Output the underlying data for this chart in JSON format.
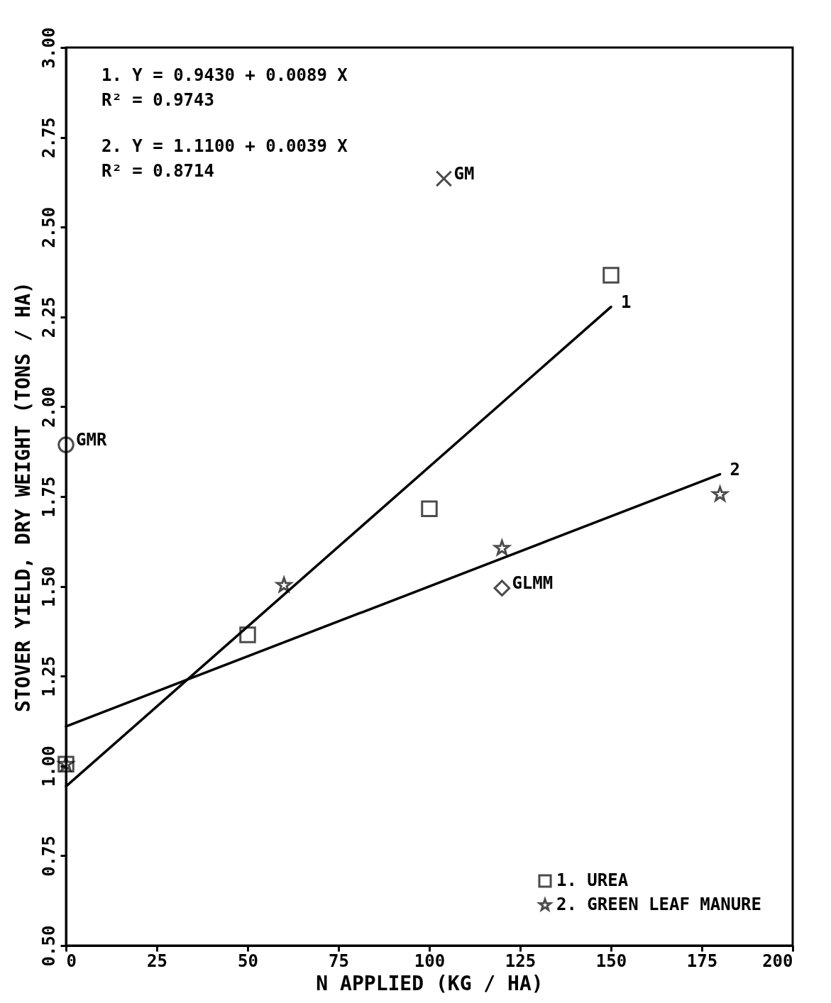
{
  "chart_data": {
    "type": "scatter",
    "xlabel": "N APPLIED (KG / HA)",
    "ylabel": "STOVER YIELD, DRY WEIGHT (TONS / HA)",
    "xlim": [
      0,
      200
    ],
    "xticks": [
      0,
      25,
      50,
      75,
      100,
      125,
      150,
      175,
      200
    ],
    "ylim": [
      0.5,
      3.0
    ],
    "yticks": [
      {
        "value": 0.5,
        "label": "0.50"
      },
      0.75,
      {
        "value": 1.0,
        "label": "1.00"
      },
      1.25,
      {
        "value": 1.5,
        "label": "1.50"
      },
      1.75,
      {
        "value": 2.0,
        "label": "2.00"
      },
      2.25,
      {
        "value": 2.5,
        "label": "2.50"
      },
      2.75,
      {
        "value": 3.0,
        "label": "3.00"
      }
    ],
    "grid": false,
    "legend": "bottom right",
    "series": [
      {
        "name": "1. UREA",
        "type": "scatter",
        "marker": "square",
        "color": "#000000",
        "x": [
          0,
          50,
          100,
          150
        ],
        "values": [
          1.005,
          1.365,
          1.716,
          2.366
        ]
      },
      {
        "name": "2. GREEN LEAF MANURE",
        "type": "scatter",
        "marker": "star",
        "color": "#000000",
        "x": [
          0,
          60,
          120,
          180
        ],
        "values": [
          1.005,
          1.503,
          1.606,
          1.756
        ]
      },
      {
        "type": "scatter",
        "marker": "cross",
        "color": "#000000",
        "x": [
          104
        ],
        "values": [
          2.635
        ]
      },
      {
        "type": "scatter",
        "marker": "circle",
        "color": "#000000",
        "x": [
          0
        ],
        "values": [
          1.894
        ]
      },
      {
        "type": "scatter",
        "marker": "diamond",
        "color": "#000000",
        "x": [
          120
        ],
        "values": [
          1.495
        ]
      },
      {
        "type": "line",
        "color": "#000000",
        "x": [
          0,
          150
        ],
        "values": [
          0.943,
          2.278
        ]
      },
      {
        "type": "line",
        "color": "#000000",
        "x": [
          0,
          180
        ],
        "values": [
          1.11,
          1.812
        ]
      }
    ],
    "annotations": [
      "1.  Y = 0.9430 + 0.0089 X",
      "    R² = 0.9743",
      "2.  Y = 1.1100 + 0.0039 X",
      "    R² = 0.8714",
      {
        "text": "GM",
        "x": 104,
        "y": 2.635
      },
      {
        "text": "GMR",
        "x": 0,
        "y": 1.894
      },
      {
        "text": "GLMM",
        "x": 120,
        "y": 1.495
      },
      {
        "text": "1",
        "x": 150,
        "y": 2.278
      },
      {
        "text": "2",
        "x": 180,
        "y": 1.812
      }
    ]
  }
}
